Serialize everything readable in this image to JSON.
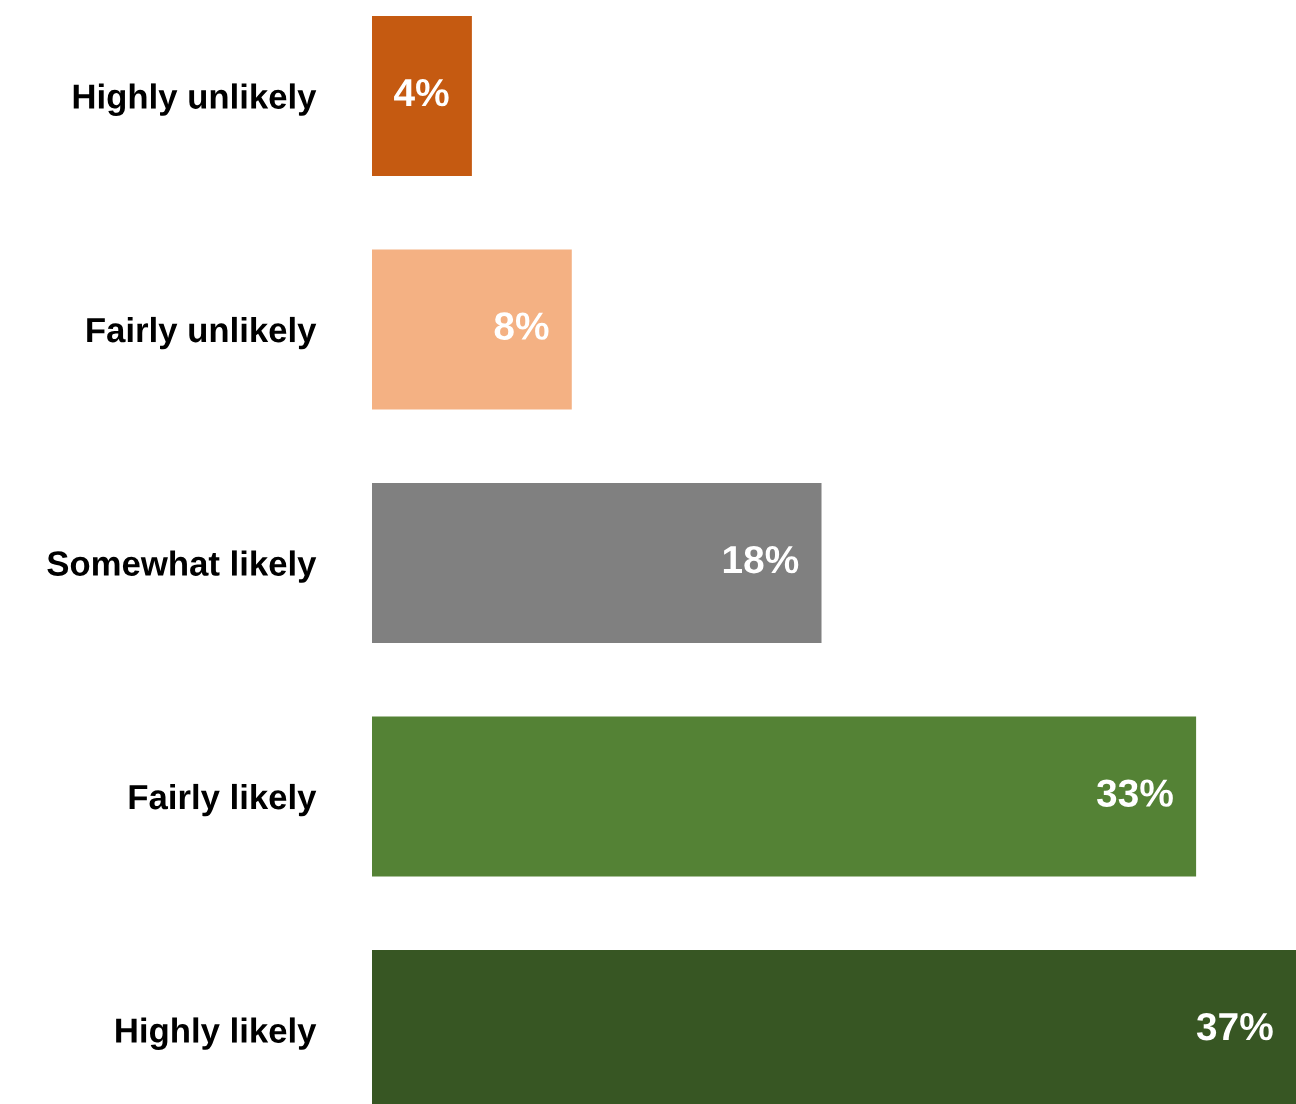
{
  "chart_data": {
    "type": "bar",
    "orientation": "horizontal",
    "categories": [
      "Highly unlikely",
      "Fairly unlikely",
      "Somewhat likely",
      "Fairly likely",
      "Highly likely"
    ],
    "values": [
      4,
      8,
      18,
      33,
      37
    ],
    "colors": [
      "#c55a11",
      "#f4b183",
      "#808080",
      "#548235",
      "#375623"
    ],
    "value_labels": [
      "4%",
      "8%",
      "18%",
      "33%",
      "37%"
    ],
    "xlim": [
      0,
      37
    ],
    "tick_labels": "y",
    "grid": false,
    "legend": false
  }
}
